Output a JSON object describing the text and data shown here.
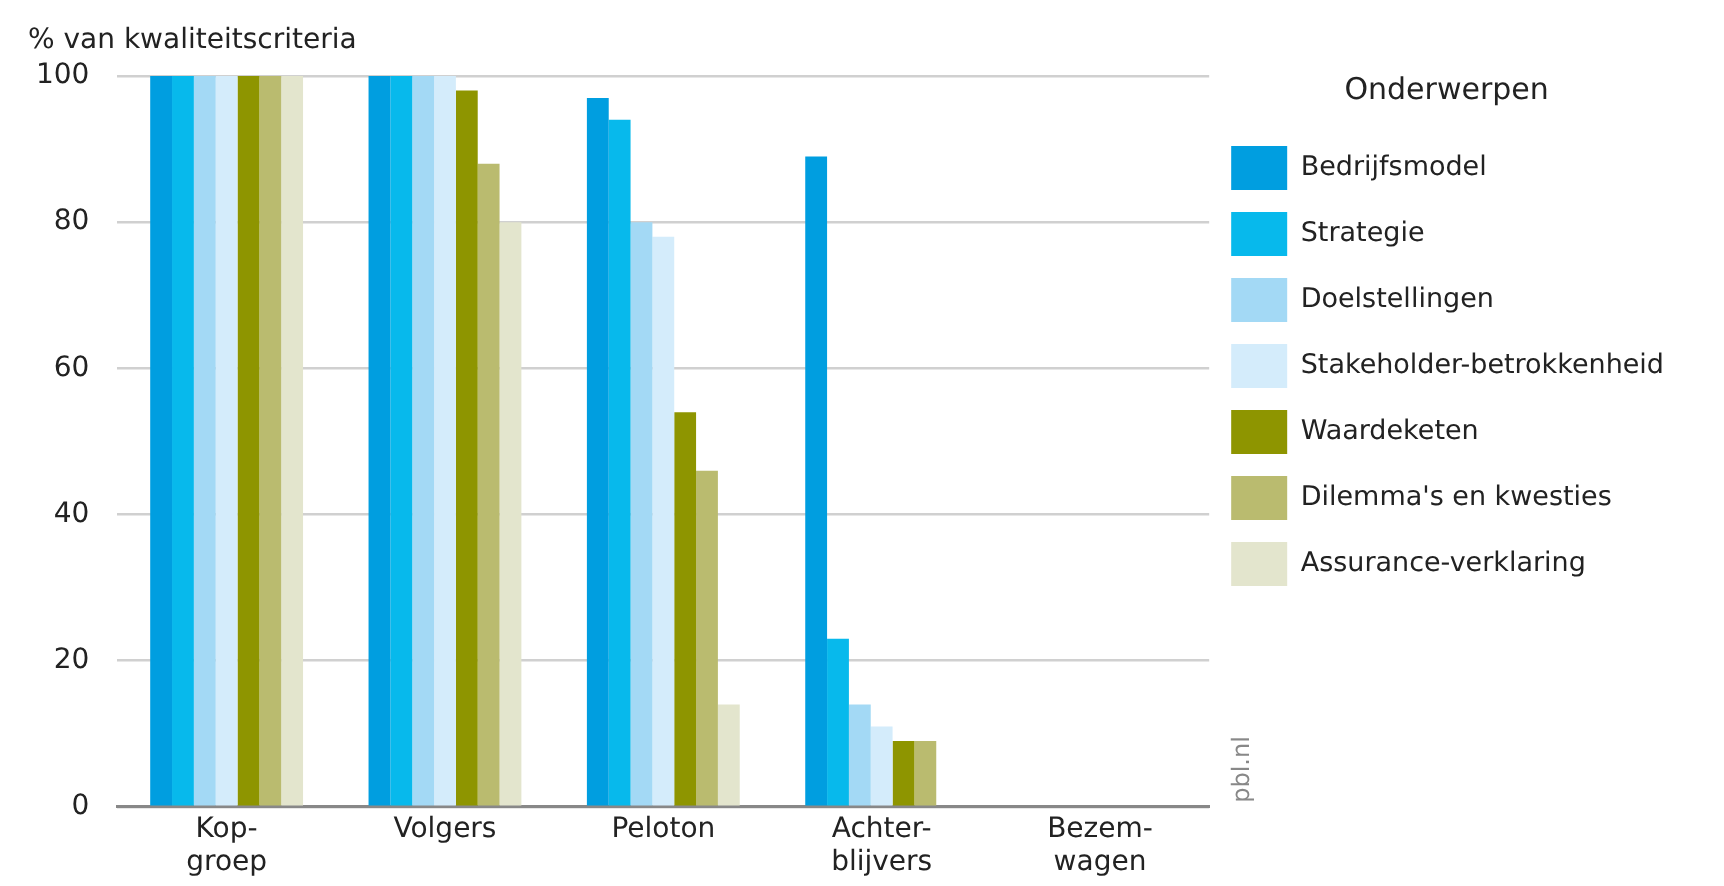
{
  "chart_data": {
    "type": "bar",
    "ylabel": "% van kwaliteitscriteria",
    "legend_title": "Onderwerpen",
    "legend": "right",
    "grid": "y",
    "categories": [
      "Kop-\ngroep",
      "Volgers",
      "Peloton",
      "Achter-\nblijvers",
      "Bezem-\nwagen"
    ],
    "ylim": [
      0,
      100
    ],
    "yticks": [
      0,
      20,
      40,
      60,
      80,
      100
    ],
    "series": [
      {
        "name": "Bedrijfsmodel",
        "color": "#009ee0",
        "values": [
          100,
          100,
          97,
          89,
          0
        ]
      },
      {
        "name": "Strategie",
        "color": "#07b9ec",
        "values": [
          100,
          100,
          94,
          23,
          0
        ]
      },
      {
        "name": "Doelstellingen",
        "color": "#a3d9f5",
        "values": [
          100,
          100,
          80,
          14,
          0
        ]
      },
      {
        "name": "Stakeholder-betrokkenheid",
        "color": "#d4ecfb",
        "values": [
          100,
          100,
          78,
          11,
          0
        ]
      },
      {
        "name": "Waardeketen",
        "color": "#8e9500",
        "values": [
          100,
          98,
          54,
          9,
          0
        ]
      },
      {
        "name": "Dilemma's en kwesties",
        "color": "#babb6f",
        "values": [
          100,
          88,
          46,
          9,
          0
        ]
      },
      {
        "name": "Assurance-verklaring",
        "color": "#e3e5cd",
        "values": [
          100,
          80,
          14,
          0,
          0
        ]
      }
    ],
    "annotations": [
      "pbl.nl"
    ]
  }
}
